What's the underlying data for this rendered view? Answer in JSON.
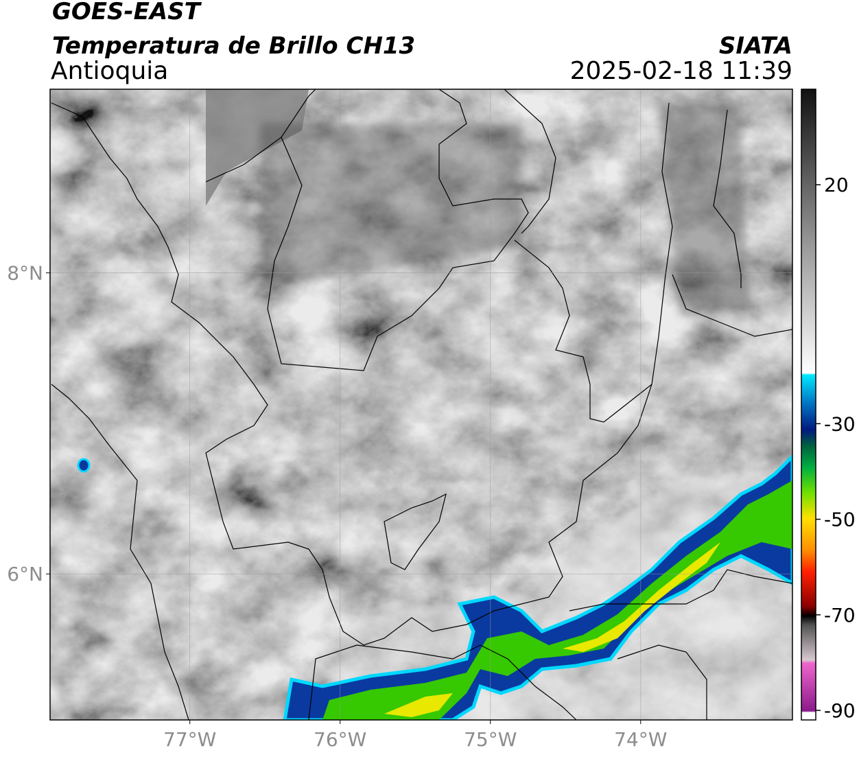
{
  "header": {
    "title": "GOES-EAST",
    "subtitle": "Temperatura de Brillo CH13",
    "region": "Antioquia",
    "source": "SIATA",
    "datetime": "2025-02-18 11:39"
  },
  "map": {
    "xlim": [
      -77.93,
      -72.99
    ],
    "ylim": [
      5.03,
      9.22
    ],
    "xticks": [
      {
        "value": -77,
        "label": "77°W"
      },
      {
        "value": -76,
        "label": "76°W"
      },
      {
        "value": -75,
        "label": "75°W"
      },
      {
        "value": -74,
        "label": "74°W"
      }
    ],
    "yticks": [
      {
        "value": 8,
        "label": "8°N"
      },
      {
        "value": 6,
        "label": "6°N"
      }
    ],
    "grid": true
  },
  "colorbar": {
    "lim": [
      -92,
      40
    ],
    "ticks": [
      20,
      -30,
      -50,
      -70,
      -90
    ]
  }
}
